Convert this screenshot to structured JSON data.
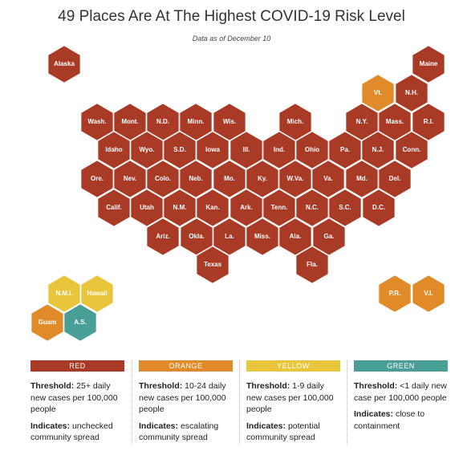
{
  "title": "49 Places Are At The Highest COVID-19 Risk Level",
  "subtitle": "Data as of December 10",
  "hexes": [
    {
      "label": "Alaska",
      "color": "#a93a26"
    },
    {
      "label": "Maine",
      "color": "#a93a26"
    },
    {
      "label": "Vt.",
      "color": "#e08a2a"
    },
    {
      "label": "N.H.",
      "color": "#a93a26"
    },
    {
      "label": "Wash.",
      "color": "#a93a26"
    },
    {
      "label": "Mont.",
      "color": "#a93a26"
    },
    {
      "label": "N.D.",
      "color": "#a93a26"
    },
    {
      "label": "Minn.",
      "color": "#a93a26"
    },
    {
      "label": "Wis.",
      "color": "#a93a26"
    },
    {
      "label": "Mich.",
      "color": "#a93a26"
    },
    {
      "label": "N.Y.",
      "color": "#a93a26"
    },
    {
      "label": "Mass.",
      "color": "#a93a26"
    },
    {
      "label": "R.I.",
      "color": "#a93a26"
    },
    {
      "label": "Idaho",
      "color": "#a93a26"
    },
    {
      "label": "Wyo.",
      "color": "#a93a26"
    },
    {
      "label": "S.D.",
      "color": "#a93a26"
    },
    {
      "label": "Iowa",
      "color": "#a93a26"
    },
    {
      "label": "Ill.",
      "color": "#a93a26"
    },
    {
      "label": "Ind.",
      "color": "#a93a26"
    },
    {
      "label": "Ohio",
      "color": "#a93a26"
    },
    {
      "label": "Pa.",
      "color": "#a93a26"
    },
    {
      "label": "N.J.",
      "color": "#a93a26"
    },
    {
      "label": "Conn.",
      "color": "#a93a26"
    },
    {
      "label": "Ore.",
      "color": "#a93a26"
    },
    {
      "label": "Nev.",
      "color": "#a93a26"
    },
    {
      "label": "Colo.",
      "color": "#a93a26"
    },
    {
      "label": "Neb.",
      "color": "#a93a26"
    },
    {
      "label": "Mo.",
      "color": "#a93a26"
    },
    {
      "label": "Ky.",
      "color": "#a93a26"
    },
    {
      "label": "W.Va.",
      "color": "#a93a26"
    },
    {
      "label": "Va.",
      "color": "#a93a26"
    },
    {
      "label": "Md.",
      "color": "#a93a26"
    },
    {
      "label": "Del.",
      "color": "#a93a26"
    },
    {
      "label": "Calif.",
      "color": "#a93a26"
    },
    {
      "label": "Utah",
      "color": "#a93a26"
    },
    {
      "label": "N.M.",
      "color": "#a93a26"
    },
    {
      "label": "Kan.",
      "color": "#a93a26"
    },
    {
      "label": "Ark.",
      "color": "#a93a26"
    },
    {
      "label": "Tenn.",
      "color": "#a93a26"
    },
    {
      "label": "N.C.",
      "color": "#a93a26"
    },
    {
      "label": "S.C.",
      "color": "#a93a26"
    },
    {
      "label": "D.C.",
      "color": "#a93a26"
    },
    {
      "label": "Ariz.",
      "color": "#a93a26"
    },
    {
      "label": "Okla.",
      "color": "#a93a26"
    },
    {
      "label": "La.",
      "color": "#a93a26"
    },
    {
      "label": "Miss.",
      "color": "#a93a26"
    },
    {
      "label": "Ala.",
      "color": "#a93a26"
    },
    {
      "label": "Ga.",
      "color": "#a93a26"
    },
    {
      "label": "Texas",
      "color": "#a93a26"
    },
    {
      "label": "Fla.",
      "color": "#a93a26"
    },
    {
      "label": "N.M.I.",
      "color": "#e8c53a"
    },
    {
      "label": "Hawaii",
      "color": "#e8c53a"
    },
    {
      "label": "Guam",
      "color": "#e08a2a"
    },
    {
      "label": "A.S.",
      "color": "#4a9e98"
    },
    {
      "label": "P.R.",
      "color": "#e08a2a"
    },
    {
      "label": "V.I.",
      "color": "#e08a2a"
    }
  ],
  "legend": {
    "threshold_label": "Threshold:",
    "indicates_label": "Indicates:",
    "items": [
      {
        "label": "RED",
        "color": "#a93a26",
        "threshold": "25+ daily new cases per 100,000 people",
        "indicates": "unchecked community spread"
      },
      {
        "label": "ORANGE",
        "color": "#e08a2a",
        "threshold": "10-24 daily new cases per 100,000 people",
        "indicates": "escalating community spread"
      },
      {
        "label": "YELLOW",
        "color": "#e8c53a",
        "threshold": "1-9 daily new cases per 100,000 people",
        "indicates": "potential community spread"
      },
      {
        "label": "GREEN",
        "color": "#4a9e98",
        "threshold": "<1 daily new case per 100,000 people",
        "indicates": "close to containment"
      }
    ]
  }
}
